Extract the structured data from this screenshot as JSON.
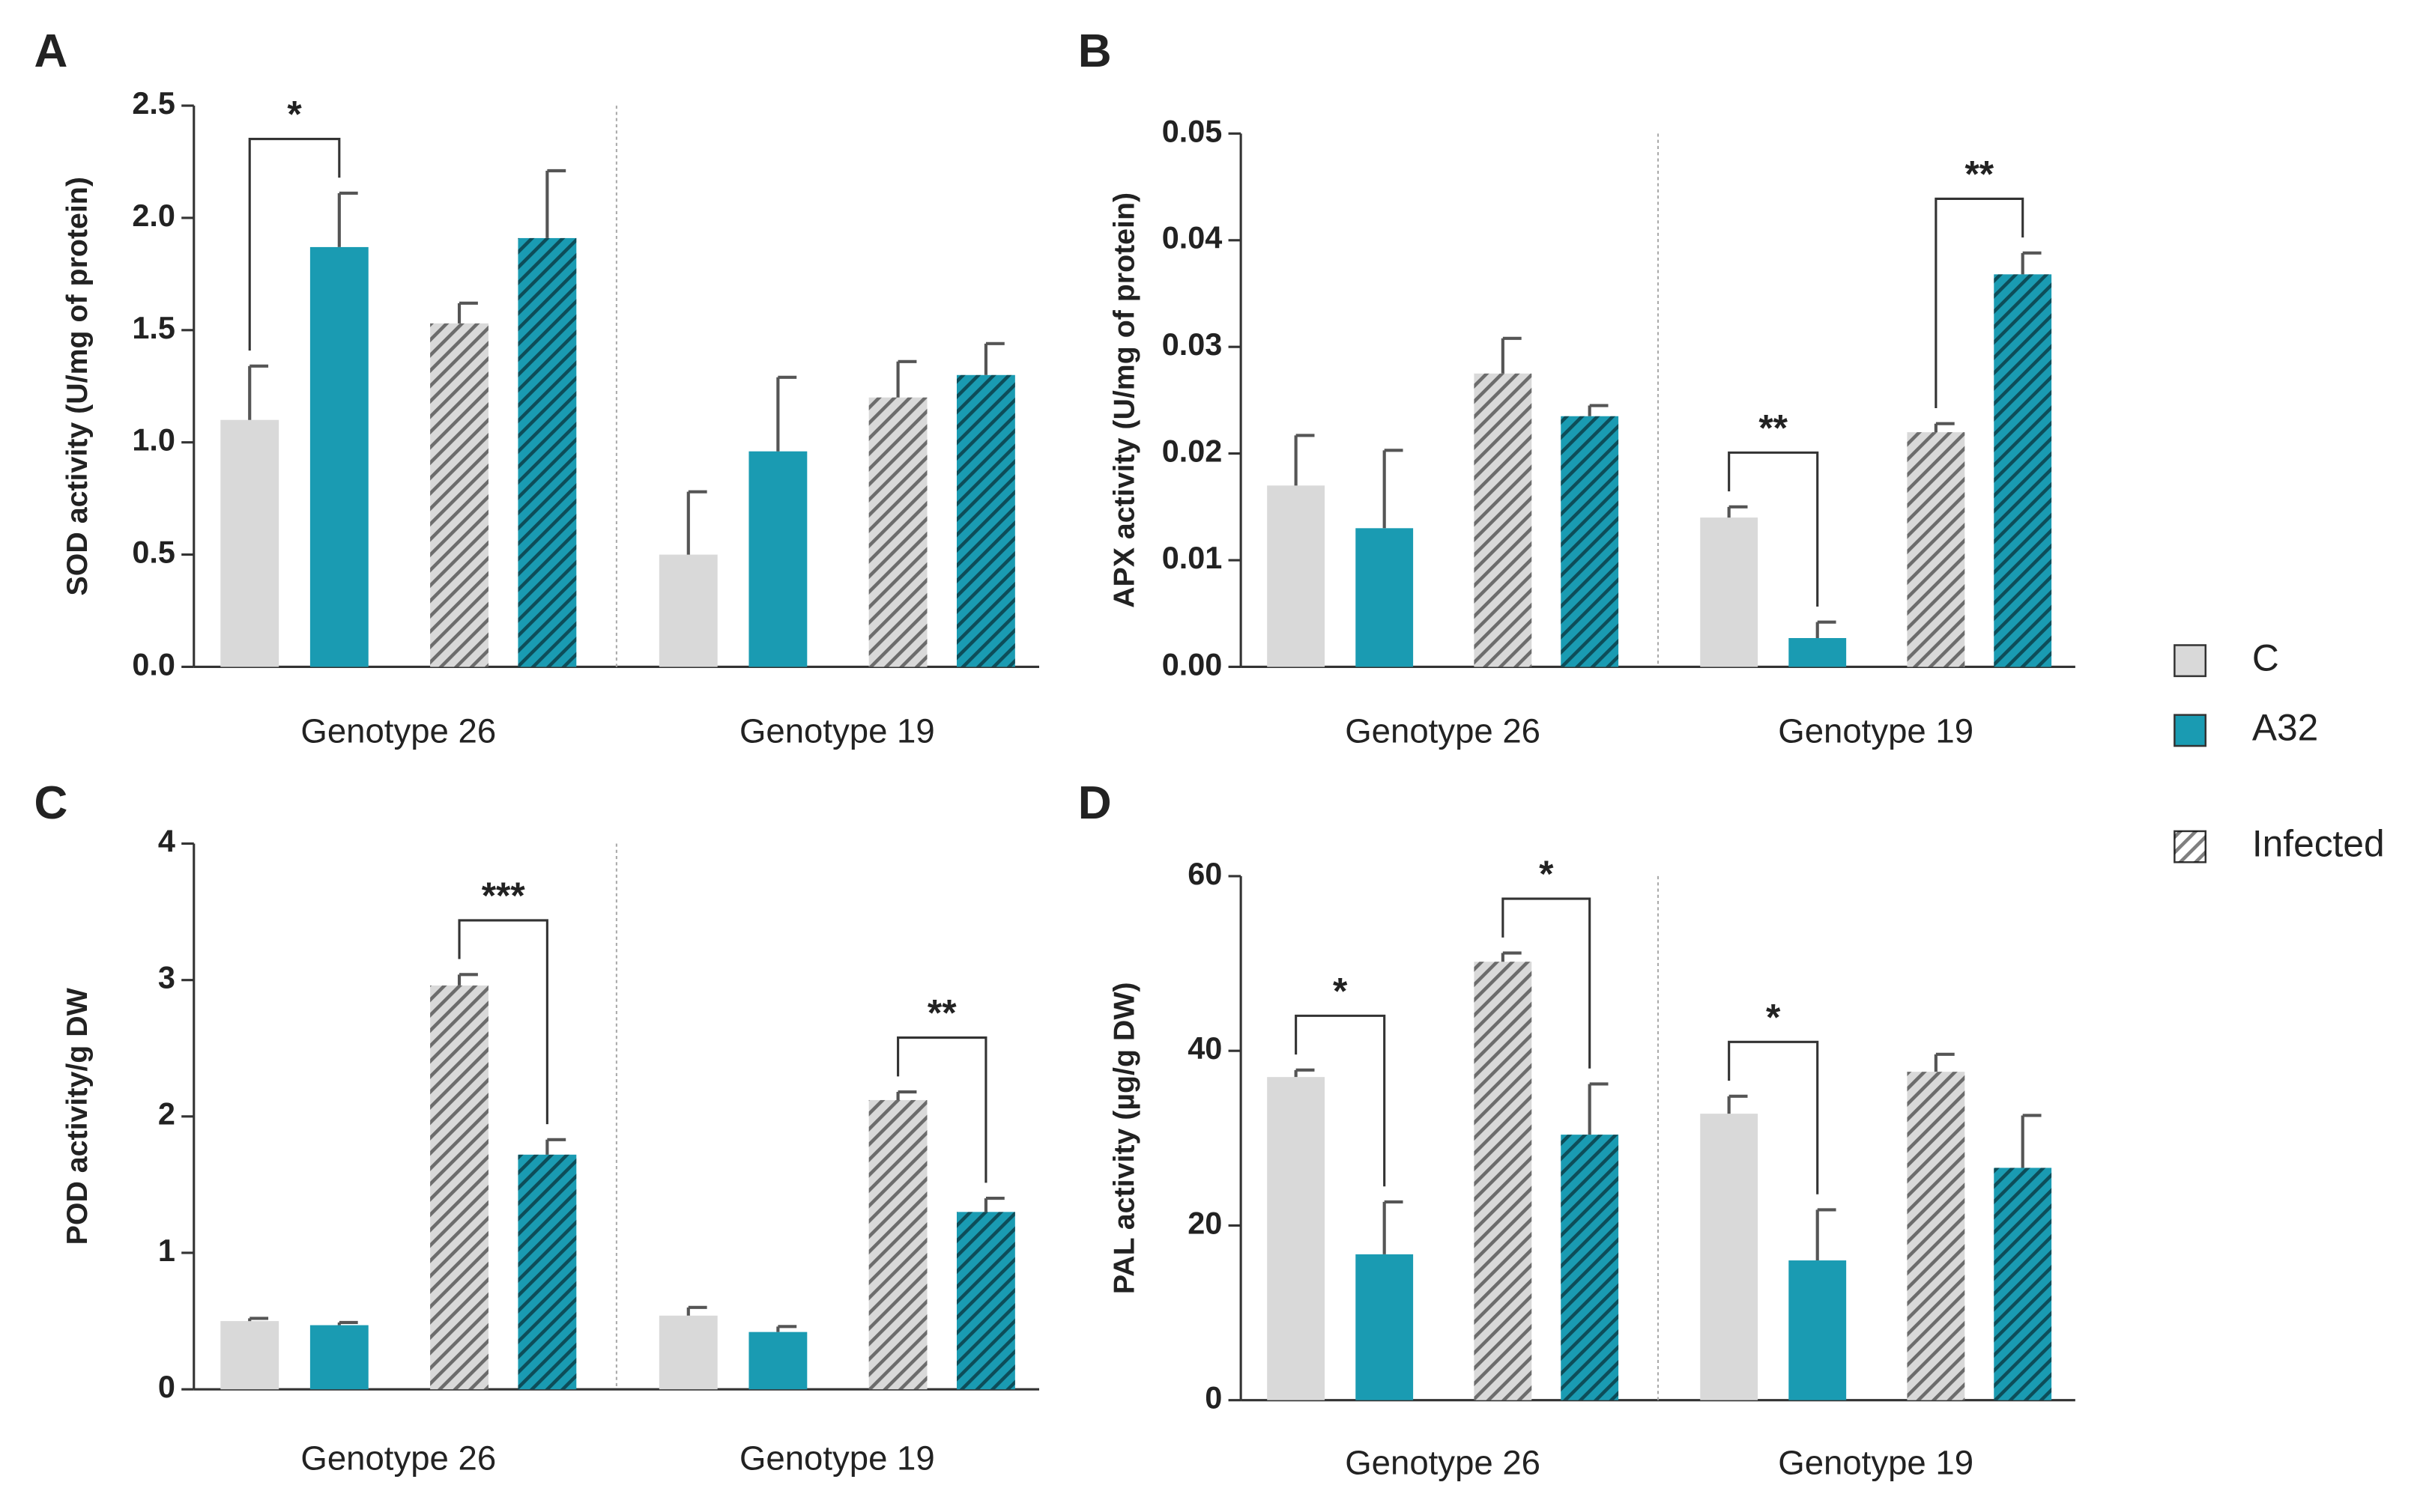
{
  "chart_data": [
    {
      "type": "bar",
      "panel": "A",
      "y_label": "SOD activity (U/mg of protein)",
      "categories": [
        "Genotype 26",
        "Genotype 19"
      ],
      "ylim": [
        0,
        2.5
      ],
      "yticks": [
        {
          "value": 0,
          "label": "0.0"
        },
        0.5,
        {
          "value": 1,
          "label": "1.0"
        },
        1.5,
        {
          "value": 2,
          "label": "2.0"
        },
        2.5
      ],
      "series": [
        {
          "color": "#d9d9d9",
          "hatched": false,
          "values": [
            1.1,
            0.5
          ],
          "errors": [
            0.24,
            0.28
          ]
        },
        {
          "color": "#1a9bb2",
          "hatched": false,
          "values": [
            1.87,
            0.96
          ],
          "errors": [
            0.24,
            0.33
          ]
        },
        {
          "color": "#d9d9d9",
          "hatched": true,
          "values": [
            1.53,
            1.2
          ],
          "errors": [
            0.09,
            0.16
          ]
        },
        {
          "color": "#1a9bb2",
          "hatched": true,
          "values": [
            1.91,
            1.3
          ],
          "errors": [
            0.3,
            0.14
          ]
        }
      ],
      "annotations": [
        {
          "text": "*",
          "series": [
            0,
            1
          ],
          "category": 0
        }
      ]
    },
    {
      "type": "bar",
      "panel": "B",
      "y_label": "APX activity (U/mg of protein)",
      "categories": [
        "Genotype 26",
        "Genotype 19"
      ],
      "ylim": [
        0,
        0.05
      ],
      "yticks": [
        {
          "value": 0,
          "label": "0.00"
        },
        {
          "value": 0.01,
          "label": "0.01"
        },
        {
          "value": 0.02,
          "label": "0.02"
        },
        {
          "value": 0.03,
          "label": "0.03"
        },
        {
          "value": 0.04,
          "label": "0.04"
        },
        {
          "value": 0.05,
          "label": "0.05"
        }
      ],
      "series": [
        {
          "color": "#d9d9d9",
          "hatched": false,
          "values": [
            0.017,
            0.014
          ],
          "errors": [
            0.0047,
            0.001
          ]
        },
        {
          "color": "#1a9bb2",
          "hatched": false,
          "values": [
            0.013,
            0.0027
          ],
          "errors": [
            0.0073,
            0.0015
          ]
        },
        {
          "color": "#d9d9d9",
          "hatched": true,
          "values": [
            0.0275,
            0.022
          ],
          "errors": [
            0.0033,
            0.0008
          ]
        },
        {
          "color": "#1a9bb2",
          "hatched": true,
          "values": [
            0.0235,
            0.0368
          ],
          "errors": [
            0.001,
            0.002
          ]
        }
      ],
      "annotations": [
        {
          "text": "**",
          "series": [
            0,
            1
          ],
          "category": 1
        },
        {
          "text": "**",
          "series": [
            2,
            3
          ],
          "category": 1
        }
      ]
    },
    {
      "type": "bar",
      "panel": "C",
      "y_label": "POD activity/g DW",
      "categories": [
        "Genotype 26",
        "Genotype 19"
      ],
      "ylim": [
        0,
        4
      ],
      "yticks": [
        0,
        1,
        2,
        3,
        4
      ],
      "series": [
        {
          "color": "#d9d9d9",
          "hatched": false,
          "values": [
            0.5,
            0.54
          ],
          "errors": [
            0.02,
            0.06
          ]
        },
        {
          "color": "#1a9bb2",
          "hatched": false,
          "values": [
            0.47,
            0.42
          ],
          "errors": [
            0.02,
            0.04
          ]
        },
        {
          "color": "#d9d9d9",
          "hatched": true,
          "values": [
            2.96,
            2.12
          ],
          "errors": [
            0.08,
            0.06
          ]
        },
        {
          "color": "#1a9bb2",
          "hatched": true,
          "values": [
            1.72,
            1.3
          ],
          "errors": [
            0.11,
            0.1
          ]
        }
      ],
      "annotations": [
        {
          "text": "***",
          "series": [
            2,
            3
          ],
          "category": 0
        },
        {
          "text": "**",
          "series": [
            2,
            3
          ],
          "category": 1
        }
      ]
    },
    {
      "type": "bar",
      "panel": "D",
      "y_label": "PAL activity (µg/g DW)",
      "categories": [
        "Genotype 26",
        "Genotype 19"
      ],
      "ylim": [
        0,
        60
      ],
      "yticks": [
        0,
        20,
        40,
        60
      ],
      "series": [
        {
          "color": "#d9d9d9",
          "hatched": false,
          "values": [
            37,
            32.8
          ],
          "errors": [
            0.8,
            2
          ]
        },
        {
          "color": "#1a9bb2",
          "hatched": false,
          "values": [
            16.7,
            16
          ],
          "errors": [
            6,
            5.8
          ]
        },
        {
          "color": "#d9d9d9",
          "hatched": true,
          "values": [
            50.2,
            37.6
          ],
          "errors": [
            1,
            2
          ]
        },
        {
          "color": "#1a9bb2",
          "hatched": true,
          "values": [
            30.4,
            26.6
          ],
          "errors": [
            5.8,
            6
          ]
        }
      ],
      "annotations": [
        {
          "text": "*",
          "series": [
            0,
            1
          ],
          "category": 0
        },
        {
          "text": "*",
          "series": [
            2,
            3
          ],
          "category": 0
        },
        {
          "text": "*",
          "series": [
            0,
            1
          ],
          "category": 1
        }
      ]
    }
  ],
  "legend": {
    "position": "right",
    "items": [
      {
        "name": "C",
        "color": "#d9d9d9",
        "hatched": false
      },
      {
        "name": "A32",
        "color": "#1a9bb2",
        "hatched": false
      },
      {
        "name": "Infected",
        "color": "#ffffff",
        "hatched": true
      }
    ]
  }
}
